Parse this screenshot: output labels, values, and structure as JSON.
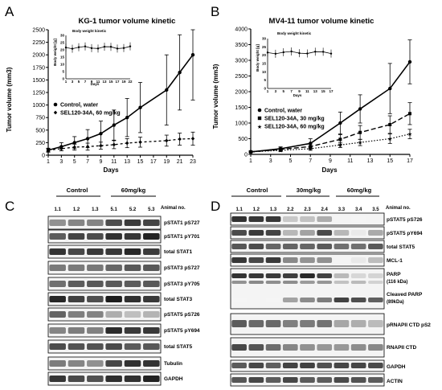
{
  "panels": {
    "a": "A",
    "b": "B",
    "c": "C",
    "d": "D"
  },
  "chart_data": [
    {
      "type": "line",
      "title": "KG-1 tumor volume kinetic",
      "xlabel": "Days",
      "ylabel": "Tumor volume (mm3)",
      "x_ticks": [
        "1",
        "3",
        "5",
        "7",
        "9",
        "11",
        "13",
        "15",
        "17",
        "19",
        "21",
        "23"
      ],
      "y_ticks": [
        "0",
        "250",
        "500",
        "750",
        "1000",
        "1250",
        "1500",
        "1750",
        "2000",
        "2250",
        "2500"
      ],
      "xlim": [
        1,
        23
      ],
      "ylim": [
        0,
        2500
      ],
      "series": [
        {
          "name": "Control, water",
          "x": [
            1,
            3,
            5,
            7,
            9,
            11,
            13,
            15,
            19,
            21,
            23
          ],
          "y": [
            100,
            170,
            250,
            330,
            430,
            600,
            750,
            950,
            1300,
            1650,
            2000
          ],
          "err": [
            40,
            80,
            120,
            180,
            250,
            300,
            380,
            500,
            700,
            750,
            900
          ]
        },
        {
          "name": "SEL120-34A, 60 mg/kg",
          "x": [
            1,
            3,
            5,
            7,
            9,
            11,
            13,
            15,
            19,
            21,
            23
          ],
          "y": [
            100,
            130,
            160,
            170,
            190,
            210,
            240,
            260,
            290,
            320,
            330
          ],
          "err": [
            30,
            40,
            60,
            70,
            70,
            80,
            90,
            100,
            110,
            120,
            130
          ]
        }
      ],
      "inset": {
        "title": "Body weight kinetic",
        "xlabel": "Days",
        "ylabel": "Body weight [g]",
        "x_ticks": [
          "1",
          "3",
          "5",
          "7",
          "9",
          "11",
          "13",
          "15",
          "17",
          "19",
          "22"
        ],
        "y_ticks": [
          "0",
          "5",
          "10",
          "15",
          "20",
          "25",
          "30"
        ]
      }
    },
    {
      "type": "line",
      "title": "MV4-11 tumor volume kinetic",
      "xlabel": "Days",
      "ylabel": "Tumor volume (mm3)",
      "x_ticks": [
        "1",
        "3",
        "5",
        "7",
        "9",
        "11",
        "13",
        "15",
        "17"
      ],
      "y_ticks": [
        "0",
        "500",
        "1000",
        "1500",
        "2000",
        "2500",
        "3000",
        "3500",
        "4000"
      ],
      "xlim": [
        1,
        17
      ],
      "ylim": [
        0,
        4000
      ],
      "series": [
        {
          "name": "Control, water",
          "x": [
            1,
            4,
            7,
            10,
            12,
            15,
            17
          ],
          "y": [
            80,
            180,
            350,
            1000,
            1450,
            2100,
            2950
          ],
          "err": [
            30,
            60,
            150,
            350,
            450,
            800,
            700
          ]
        },
        {
          "name": "SEL120-34A, 30 mg/kg",
          "x": [
            1,
            4,
            7,
            10,
            12,
            15,
            17
          ],
          "y": [
            80,
            160,
            250,
            480,
            700,
            950,
            1300
          ],
          "err": [
            30,
            50,
            80,
            150,
            220,
            280,
            350
          ]
        },
        {
          "name": "SEL120-34A, 60 mg/kg",
          "x": [
            1,
            4,
            7,
            10,
            12,
            15,
            17
          ],
          "y": [
            80,
            130,
            180,
            300,
            380,
            500,
            650
          ],
          "err": [
            20,
            40,
            50,
            80,
            100,
            150,
            150
          ]
        }
      ],
      "inset": {
        "title": "Body weight kinetic",
        "xlabel": "Days",
        "ylabel": "Body weight [g]",
        "x_ticks": [
          "1",
          "3",
          "5",
          "7",
          "9",
          "11",
          "13",
          "15",
          "17"
        ],
        "y_ticks": [
          "0",
          "5",
          "10",
          "15",
          "20",
          "25",
          "30"
        ]
      }
    }
  ],
  "blot_c": {
    "groups": [
      "Control",
      "60mg/kg"
    ],
    "animal_label": "Animal no.",
    "animals": [
      "1.1",
      "1.2",
      "1.3",
      "5.1",
      "5.2",
      "5.3"
    ],
    "rows": [
      "pSTAT1 pS727",
      "pSTAT1 pY701",
      "total STAT1",
      "pSTAT3 pS727",
      "pSTAT3 pY705",
      "total STAT3",
      "pSTAT5 pS726",
      "pSTAT5 pY694",
      "total STAT5",
      "Tubulin",
      "GAPDH"
    ]
  },
  "blot_d": {
    "groups": [
      "Control",
      "30mg/kg",
      "60mg/kg"
    ],
    "animal_label": "Animal no.",
    "animals": [
      "1.1",
      "1.2",
      "1.3",
      "2.2",
      "2.3",
      "2.4",
      "3.3",
      "3.4",
      "3.5"
    ],
    "rows": [
      "pSTAT5 pS726",
      "pSTAT5 pY694",
      "total STAT5",
      "MCL-1",
      "PARP",
      "(116 kDa)",
      "Cleaved PARP",
      "(89kDa)",
      "pRNAPII CTD pS2",
      "RNAPII CTD",
      "GAPDH",
      "ACTIN"
    ]
  }
}
